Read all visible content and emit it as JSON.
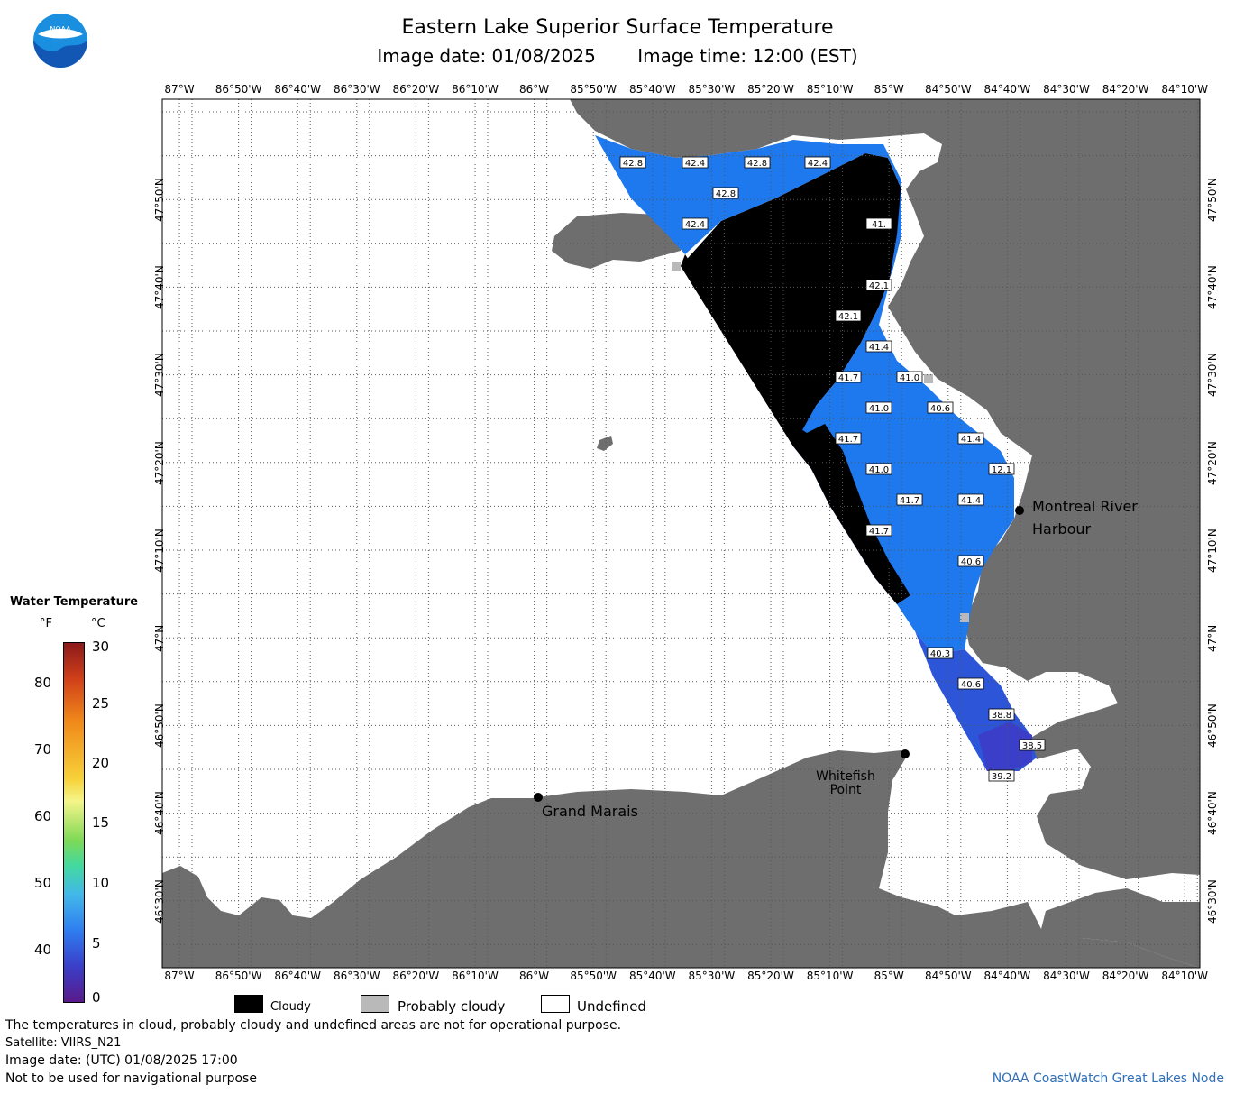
{
  "title": "Eastern Lake Superior Surface Temperature",
  "image_date_label": "Image date: 01/08/2025",
  "image_time_label": "Image time: 12:00 (EST)",
  "logo_text": "NOAA",
  "lon_ticks": [
    "87°W",
    "86°50'W",
    "86°40'W",
    "86°30'W",
    "86°20'W",
    "86°10'W",
    "86°W",
    "85°50'W",
    "85°40'W",
    "85°30'W",
    "85°20'W",
    "85°10'W",
    "85°W",
    "84°50'W",
    "84°40'W",
    "84°30'W",
    "84°20'W",
    "84°10'W"
  ],
  "lat_ticks": [
    "47°50'N",
    "47°40'N",
    "47°30'N",
    "47°20'N",
    "47°10'N",
    "47°N",
    "46°50'N",
    "46°40'N",
    "46°30'N"
  ],
  "places": {
    "montreal_river": "Montreal River",
    "harbour": "Harbour",
    "whitefish": "Whitefish",
    "point": "Point",
    "grand_marais": "Grand Marais"
  },
  "temperature_labels": [
    "42.8",
    "42.4",
    "42.8",
    "42.4",
    "42.8",
    "42.4",
    "41.",
    "42.1",
    "42.1",
    "41.4",
    "41.7",
    "41.0",
    "41.0",
    "40.6",
    "41.7",
    "41.4",
    "41.0",
    "12.1",
    "41.7",
    "41.4",
    "41.7",
    "40.6",
    "40.3",
    "40.6",
    "38.8",
    "38.5",
    "39.2"
  ],
  "legend": {
    "title": "Water Temperature",
    "unit_f": "°F",
    "unit_c": "°C",
    "f_ticks": [
      "80",
      "70",
      "60",
      "50",
      "40"
    ],
    "c_ticks": [
      "30",
      "25",
      "20",
      "15",
      "10",
      "5",
      "0"
    ]
  },
  "key": {
    "cloudy": "Cloudy",
    "probably_cloudy": "Probably cloudy",
    "undefined": "Undefined"
  },
  "footer": {
    "disclaimer": "The temperatures in cloud, probably cloudy and undefined areas are not for operational purpose.",
    "satellite": "Satellite: VIIRS_N21",
    "utc_date": "Image date: (UTC) 01/08/2025  17:00",
    "nav": "Not to be used for navigational purpose",
    "credit": "NOAA CoastWatch Great Lakes Node"
  },
  "colors": {
    "land": "#6e6e6e",
    "cloud": "#000000",
    "probably_cloudy": "#b9b9b9",
    "undefined": "#ffffff",
    "water_42f": "#1e78ee",
    "water_40f": "#2d55d8",
    "water_39f": "#3b3ec8"
  }
}
